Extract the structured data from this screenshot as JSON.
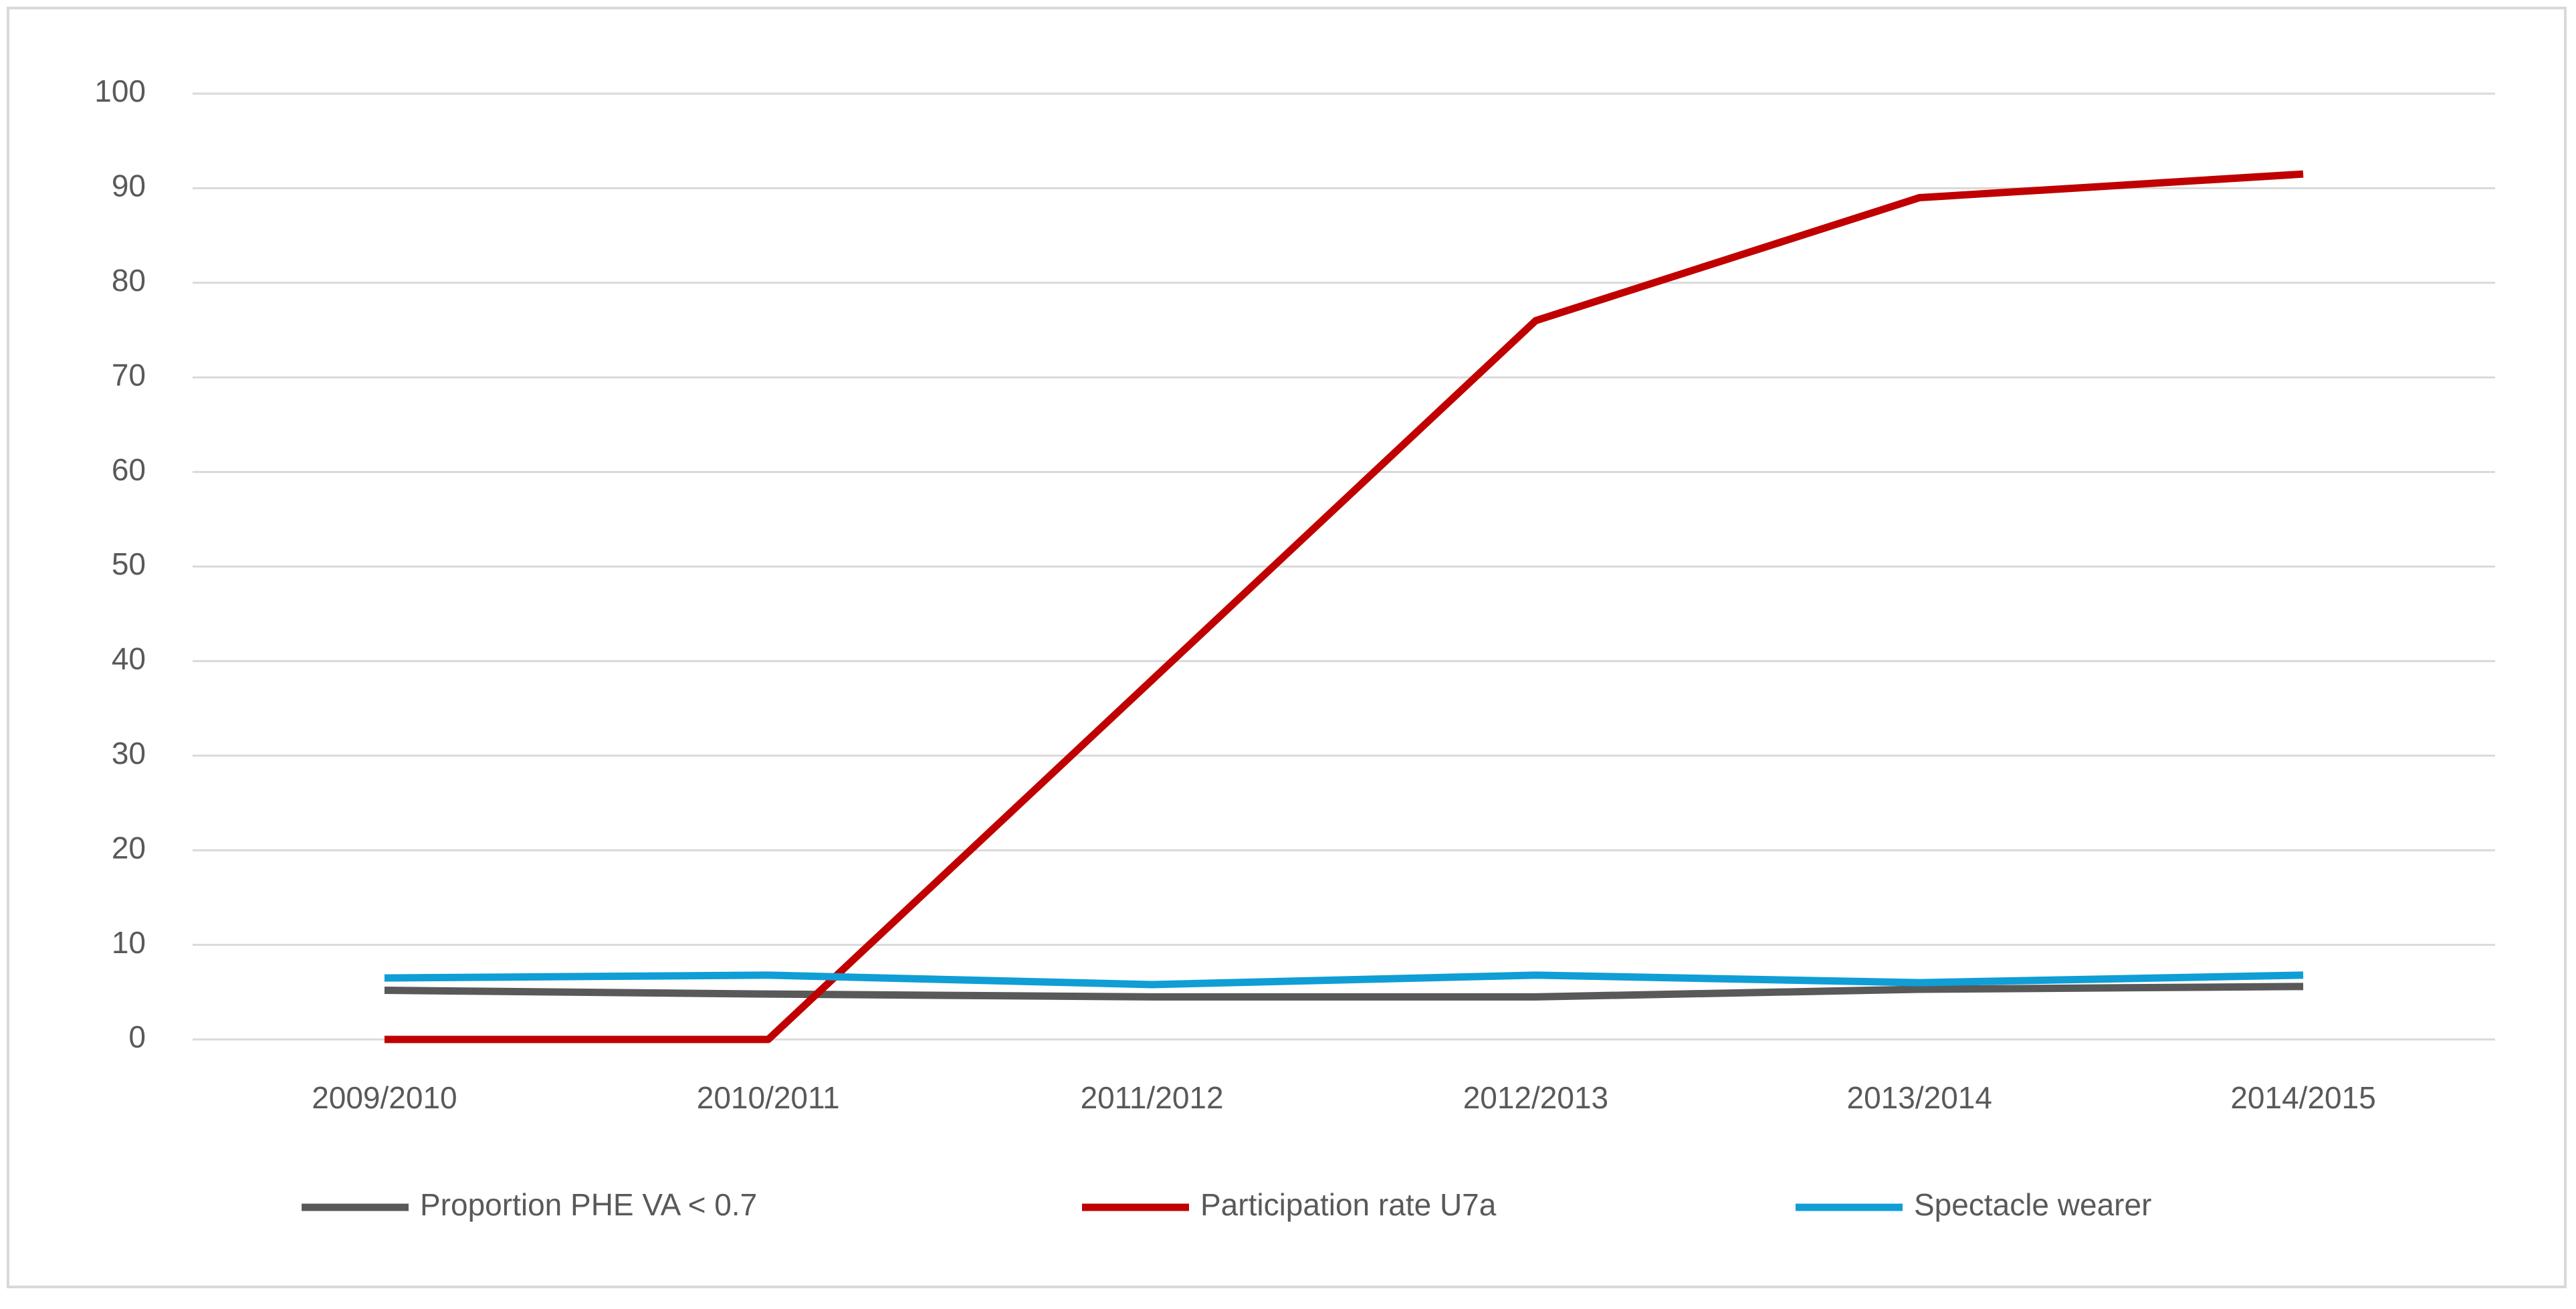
{
  "chart_data": {
    "type": "line",
    "categories": [
      "2009/2010",
      "2010/2011",
      "2011/2012",
      "2012/2013",
      "2013/2014",
      "2014/2015"
    ],
    "series": [
      {
        "name": "Proportion PHE VA < 0.7",
        "color": "#595959",
        "values": [
          5.2,
          4.8,
          4.5,
          4.5,
          5.3,
          5.6
        ]
      },
      {
        "name": "Participation rate U7a",
        "color": "#c00000",
        "values": [
          0,
          0,
          38,
          76,
          89,
          91.5
        ]
      },
      {
        "name": "Spectacle wearer",
        "color": "#0f9ed5",
        "values": [
          6.5,
          6.8,
          5.8,
          6.8,
          6.0,
          6.8
        ]
      }
    ],
    "ylim": [
      0,
      100
    ],
    "yticks": [
      0,
      10,
      20,
      30,
      40,
      50,
      60,
      70,
      80,
      90,
      100
    ],
    "grid": true,
    "legend": "bottom"
  }
}
